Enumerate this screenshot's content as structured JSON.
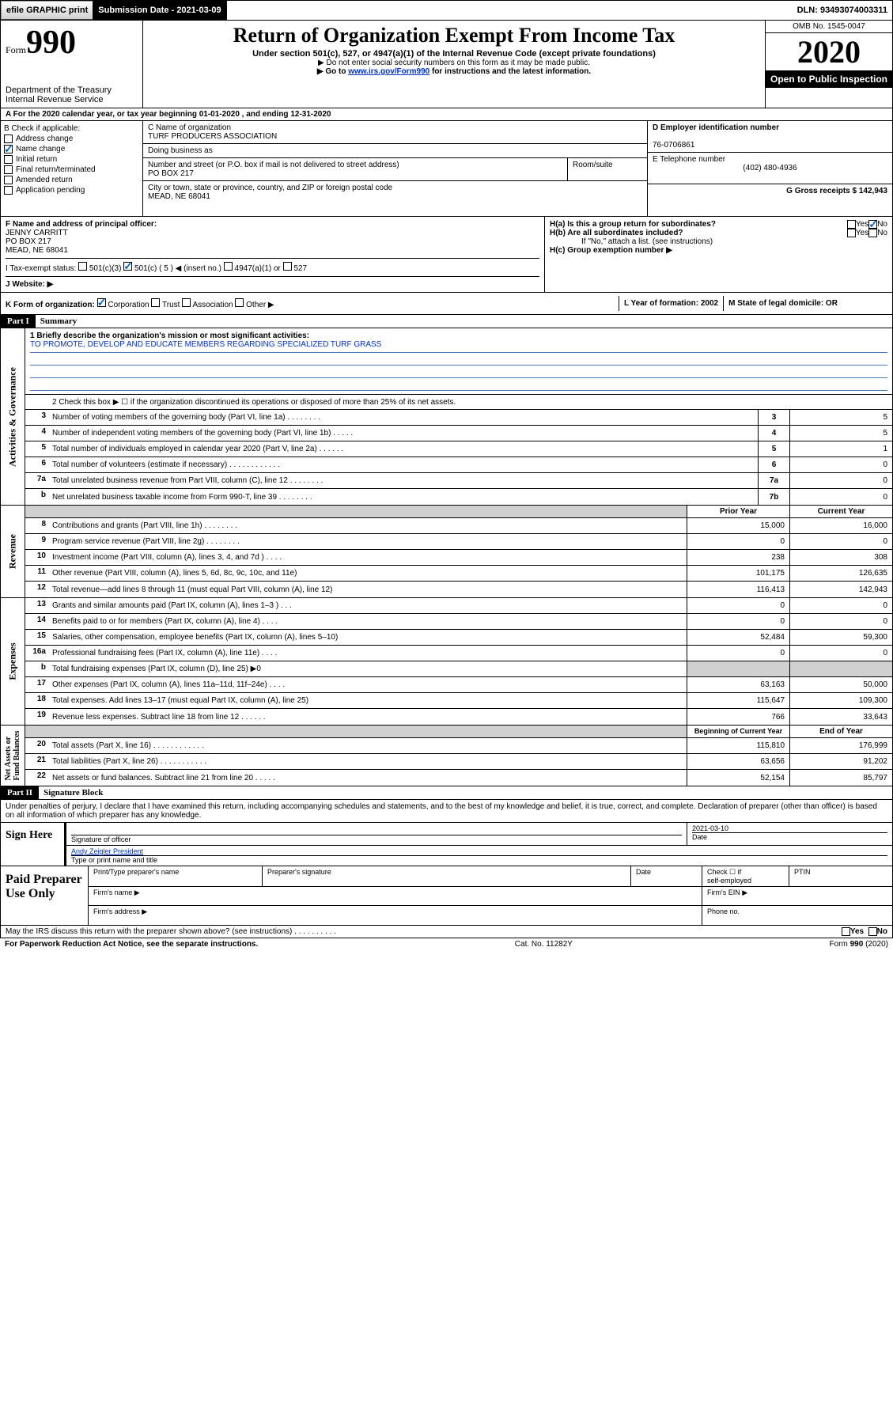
{
  "topbar": {
    "efile": "efile GRAPHIC print",
    "submission_label": "Submission Date - 2021-03-09",
    "dln": "DLN: 93493074003311"
  },
  "header": {
    "form_label": "Form",
    "form_num": "990",
    "dept": "Department of the Treasury\nInternal Revenue Service",
    "title": "Return of Organization Exempt From Income Tax",
    "sub1": "Under section 501(c), 527, or 4947(a)(1) of the Internal Revenue Code (except private foundations)",
    "sub2a": "▶ Do not enter social security numbers on this form as it may be made public.",
    "sub2b_pre": "▶ Go to ",
    "sub2b_link": "www.irs.gov/Form990",
    "sub2b_post": " for instructions and the latest information.",
    "omb": "OMB No. 1545-0047",
    "year": "2020",
    "open": "Open to Public Inspection"
  },
  "rowA": "A  For the 2020 calendar year, or tax year beginning 01-01-2020    , and ending 12-31-2020",
  "boxB": {
    "hdr": "B Check if applicable:",
    "items": [
      "Address change",
      "Name change",
      "Initial return",
      "Final return/terminated",
      "Amended return",
      "Application pending"
    ],
    "checked_idx": 1
  },
  "boxC": {
    "name_lbl": "C Name of organization",
    "name": "TURF PRODUCERS ASSOCIATION",
    "dba_lbl": "Doing business as",
    "street_lbl": "Number and street (or P.O. box if mail is not delivered to street address)",
    "room_lbl": "Room/suite",
    "street": "PO BOX 217",
    "city_lbl": "City or town, state or province, country, and ZIP or foreign postal code",
    "city": "MEAD, NE  68041"
  },
  "boxD": {
    "lbl": "D Employer identification number",
    "val": "76-0706861"
  },
  "boxE": {
    "lbl": "E Telephone number",
    "val": "(402) 480-4936"
  },
  "boxG": {
    "lbl": "G Gross receipts $ 142,943"
  },
  "boxF": {
    "lbl": "F  Name and address of principal officer:",
    "name": "JENNY CARRITT",
    "addr1": "PO BOX 217",
    "addr2": "MEAD, NE  68041"
  },
  "boxH": {
    "a_lbl": "H(a)  Is this a group return for subordinates?",
    "b_lbl": "H(b)  Are all subordinates included?",
    "b_note": "If \"No,\" attach a list. (see instructions)",
    "c_lbl": "H(c)  Group exemption number ▶",
    "yes": "Yes",
    "no": "No"
  },
  "rowI": {
    "lbl": "I    Tax-exempt status:",
    "c3": "501(c)(3)",
    "c_ins": "501(c) ( 5 ) ◀ (insert no.)",
    "c4947": "4947(a)(1) or",
    "c527": "527"
  },
  "rowJ": "J    Website: ▶",
  "rowK": {
    "lbl": "K Form of organization:",
    "corp": "Corporation",
    "trust": "Trust",
    "assoc": "Association",
    "other": "Other ▶",
    "L": "L Year of formation: 2002",
    "M": "M State of legal domicile: OR"
  },
  "part1": {
    "hdr": "Part I",
    "title": "Summary",
    "l1_lbl": "1  Briefly describe the organization's mission or most significant activities:",
    "mission": "TO PROMOTE, DEVELOP AND EDUCATE MEMBERS REGARDING SPECIALIZED TURF GRASS",
    "l2": "2    Check this box ▶ ☐  if the organization discontinued its operations or disposed of more than 25% of its net assets.",
    "lines_single": [
      {
        "n": "3",
        "d": "Number of voting members of the governing body (Part VI, line 1a)  .    .    .    .    .    .    .    .",
        "b": "3",
        "v": "5"
      },
      {
        "n": "4",
        "d": "Number of independent voting members of the governing body (Part VI, line 1b)  .    .    .    .    .",
        "b": "4",
        "v": "5"
      },
      {
        "n": "5",
        "d": "Total number of individuals employed in calendar year 2020 (Part V, line 2a)  .    .    .    .    .    .",
        "b": "5",
        "v": "1"
      },
      {
        "n": "6",
        "d": "Total number of volunteers (estimate if necessary)  .    .    .    .    .    .    .    .    .    .    .    .",
        "b": "6",
        "v": "0"
      },
      {
        "n": "7a",
        "d": "Total unrelated business revenue from Part VIII, column (C), line 12  .    .    .    .    .    .    .    .",
        "b": "7a",
        "v": "0"
      },
      {
        "n": "b",
        "d": "Net unrelated business taxable income from Form 990-T, line 39  .    .    .    .    .    .    .    .",
        "b": "7b",
        "v": "0"
      }
    ],
    "prior_hdr": "Prior Year",
    "current_hdr": "Current Year",
    "revenue": [
      {
        "n": "8",
        "d": "Contributions and grants (Part VIII, line 1h)  .    .    .    .    .    .    .    .",
        "p": "15,000",
        "c": "16,000"
      },
      {
        "n": "9",
        "d": "Program service revenue (Part VIII, line 2g)  .    .    .    .    .    .    .    .",
        "p": "0",
        "c": "0"
      },
      {
        "n": "10",
        "d": "Investment income (Part VIII, column (A), lines 3, 4, and 7d )  .    .    .    .",
        "p": "238",
        "c": "308"
      },
      {
        "n": "11",
        "d": "Other revenue (Part VIII, column (A), lines 5, 6d, 8c, 9c, 10c, and 11e)",
        "p": "101,175",
        "c": "126,635"
      },
      {
        "n": "12",
        "d": "Total revenue—add lines 8 through 11 (must equal Part VIII, column (A), line 12)",
        "p": "116,413",
        "c": "142,943"
      }
    ],
    "expenses": [
      {
        "n": "13",
        "d": "Grants and similar amounts paid (Part IX, column (A), lines 1–3 )  .    .    .",
        "p": "0",
        "c": "0"
      },
      {
        "n": "14",
        "d": "Benefits paid to or for members (Part IX, column (A), line 4)  .    .    .    .",
        "p": "0",
        "c": "0"
      },
      {
        "n": "15",
        "d": "Salaries, other compensation, employee benefits (Part IX, column (A), lines 5–10)",
        "p": "52,484",
        "c": "59,300"
      },
      {
        "n": "16a",
        "d": "Professional fundraising fees (Part IX, column (A), line 11e)  .    .    .    .",
        "p": "0",
        "c": "0"
      },
      {
        "n": "b",
        "d": "Total fundraising expenses (Part IX, column (D), line 25) ▶0",
        "p": "",
        "c": "",
        "shade": true
      },
      {
        "n": "17",
        "d": "Other expenses (Part IX, column (A), lines 11a–11d, 11f–24e)  .    .    .    .",
        "p": "63,163",
        "c": "50,000"
      },
      {
        "n": "18",
        "d": "Total expenses. Add lines 13–17 (must equal Part IX, column (A), line 25)",
        "p": "115,647",
        "c": "109,300"
      },
      {
        "n": "19",
        "d": "Revenue less expenses. Subtract line 18 from line 12  .    .    .    .    .    .",
        "p": "766",
        "c": "33,643"
      }
    ],
    "bocy_hdr": "Beginning of Current Year",
    "eoy_hdr": "End of Year",
    "net": [
      {
        "n": "20",
        "d": "Total assets (Part X, line 16)  .    .    .    .    .    .    .    .    .    .    .    .",
        "p": "115,810",
        "c": "176,999"
      },
      {
        "n": "21",
        "d": "Total liabilities (Part X, line 26)  .    .    .    .    .    .    .    .    .    .    .",
        "p": "63,656",
        "c": "91,202"
      },
      {
        "n": "22",
        "d": "Net assets or fund balances. Subtract line 21 from line 20  .    .    .    .    .",
        "p": "52,154",
        "c": "85,797"
      }
    ]
  },
  "part2": {
    "hdr": "Part II",
    "title": "Signature Block"
  },
  "perjury": "Under penalties of perjury, I declare that I have examined this return, including accompanying schedules and statements, and to the best of my knowledge and belief, it is true, correct, and complete. Declaration of preparer (other than officer) is based on all information of which preparer has any knowledge.",
  "sign": {
    "here": "Sign Here",
    "sig_lbl": "Signature of officer",
    "date": "2021-03-10",
    "date_lbl": "Date",
    "name": "Andy Zeigler President",
    "name_lbl": "Type or print name and title"
  },
  "paid": {
    "lbl": "Paid Preparer Use Only",
    "r1c1": "Print/Type preparer's name",
    "r1c2": "Preparer's signature",
    "r1c3": "Date",
    "r1c4a": "Check ☐ if",
    "r1c4b": "self-employed",
    "r1c5": "PTIN",
    "r2c1": "Firm's name    ▶",
    "r2c2": "Firm's EIN ▶",
    "r3c1": "Firm's address ▶",
    "r3c2": "Phone no."
  },
  "discuss": "May the IRS discuss this return with the preparer shown above? (see instructions)   .    .    .    .    .    .    .    .    .    .",
  "footer": {
    "l": "For Paperwork Reduction Act Notice, see the separate instructions.",
    "c": "Cat. No. 11282Y",
    "r": "Form 990 (2020)"
  }
}
